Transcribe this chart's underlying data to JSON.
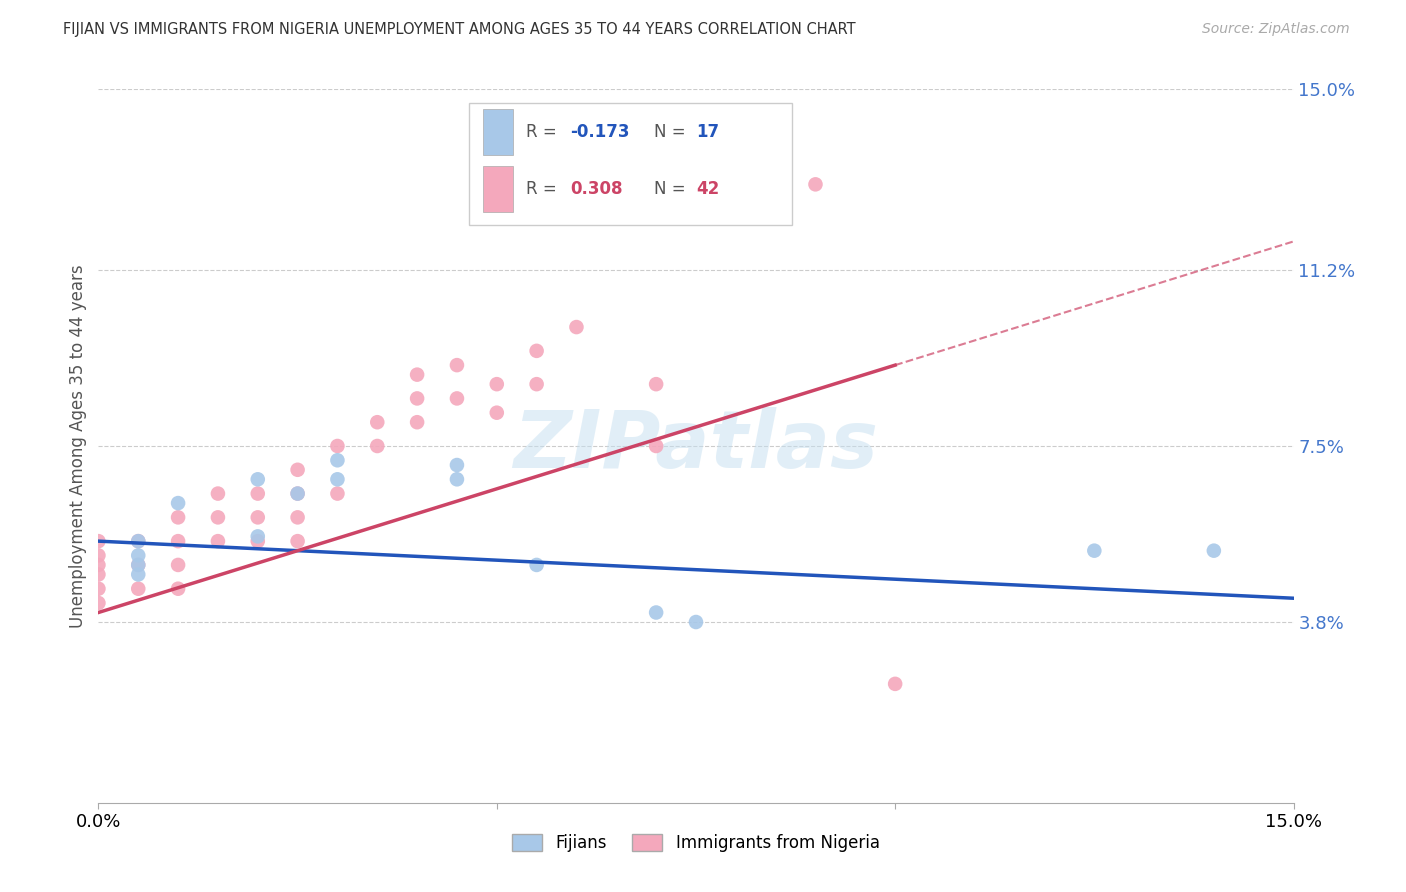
{
  "title": "FIJIAN VS IMMIGRANTS FROM NIGERIA UNEMPLOYMENT AMONG AGES 35 TO 44 YEARS CORRELATION CHART",
  "source": "Source: ZipAtlas.com",
  "ylabel": "Unemployment Among Ages 35 to 44 years",
  "xlim": [
    0.0,
    0.15
  ],
  "ylim": [
    0.0,
    0.15
  ],
  "yticks": [
    0.038,
    0.075,
    0.112,
    0.15
  ],
  "ytick_labels": [
    "3.8%",
    "7.5%",
    "11.2%",
    "15.0%"
  ],
  "xticks": [
    0.0,
    0.05,
    0.1,
    0.15
  ],
  "xtick_labels": [
    "0.0%",
    "",
    "",
    "15.0%"
  ],
  "fijian_color": "#a8c8e8",
  "nigeria_color": "#f4a8bc",
  "fijian_R": -0.173,
  "fijian_N": 17,
  "nigeria_R": 0.308,
  "nigeria_N": 42,
  "line_color_fijian": "#2255bb",
  "line_color_nigeria": "#cc4466",
  "watermark": "ZIPatlas",
  "background_color": "#ffffff",
  "fijians_x": [
    0.005,
    0.01,
    0.005,
    0.005,
    0.005,
    0.02,
    0.02,
    0.025,
    0.03,
    0.03,
    0.045,
    0.045,
    0.055,
    0.07,
    0.075,
    0.125,
    0.14
  ],
  "fijians_y": [
    0.055,
    0.063,
    0.052,
    0.05,
    0.048,
    0.068,
    0.056,
    0.065,
    0.072,
    0.068,
    0.071,
    0.068,
    0.05,
    0.04,
    0.038,
    0.053,
    0.053
  ],
  "nigeria_x": [
    0.0,
    0.0,
    0.0,
    0.0,
    0.0,
    0.0,
    0.005,
    0.005,
    0.005,
    0.01,
    0.01,
    0.01,
    0.01,
    0.015,
    0.015,
    0.015,
    0.02,
    0.02,
    0.02,
    0.025,
    0.025,
    0.025,
    0.025,
    0.03,
    0.03,
    0.035,
    0.035,
    0.04,
    0.04,
    0.04,
    0.045,
    0.045,
    0.05,
    0.05,
    0.055,
    0.055,
    0.06,
    0.07,
    0.07,
    0.075,
    0.09,
    0.1
  ],
  "nigeria_y": [
    0.055,
    0.052,
    0.05,
    0.048,
    0.045,
    0.042,
    0.055,
    0.05,
    0.045,
    0.06,
    0.055,
    0.05,
    0.045,
    0.065,
    0.06,
    0.055,
    0.065,
    0.06,
    0.055,
    0.07,
    0.065,
    0.06,
    0.055,
    0.075,
    0.065,
    0.08,
    0.075,
    0.09,
    0.085,
    0.08,
    0.092,
    0.085,
    0.088,
    0.082,
    0.095,
    0.088,
    0.1,
    0.088,
    0.075,
    0.14,
    0.13,
    0.025
  ]
}
